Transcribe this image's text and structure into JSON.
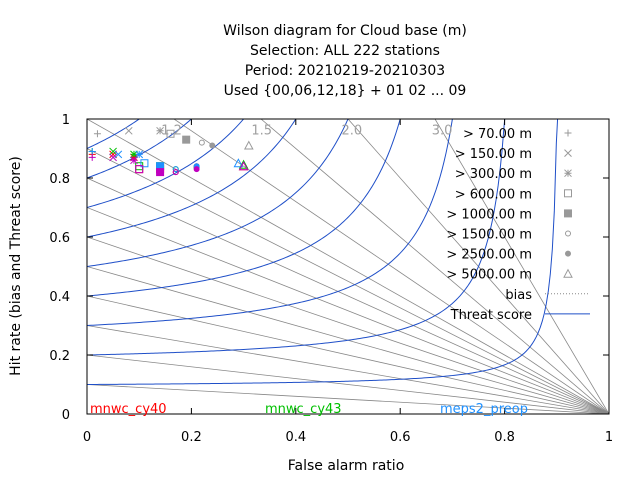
{
  "chart_data": {
    "type": "scatter",
    "title_lines": [
      "Wilson diagram  for Cloud base (m)",
      "Selection: ALL    222 stations",
      "Period: 20210219-20210303",
      "Used {00,06,12,18} + 01 02 ... 09"
    ],
    "xlabel": "False alarm ratio",
    "ylabel": "Hit rate (bias and Threat score)",
    "xlim": [
      0,
      1
    ],
    "ylim": [
      0,
      1
    ],
    "x_ticks": [
      "0",
      "0.2",
      "0.4",
      "0.6",
      "0.8",
      "1"
    ],
    "y_ticks": [
      "0",
      "0.2",
      "0.4",
      "0.6",
      "0.8",
      "1"
    ],
    "bias_values": [
      0.1,
      0.2,
      0.3,
      0.4,
      0.5,
      0.6,
      0.7,
      0.8,
      0.9,
      1.0,
      1.2,
      1.5,
      2.0,
      3.0
    ],
    "bias_labels": [
      "1.2",
      "1.5",
      "2.0",
      "3.0"
    ],
    "threat_scores": [
      0.1,
      0.2,
      0.3,
      0.4,
      0.5,
      0.6,
      0.7,
      0.8,
      0.9
    ],
    "legend": {
      "position": "top-right",
      "entries": [
        {
          "label": "> 70.00 m",
          "symbol": "plus"
        },
        {
          "label": "> 150.00 m",
          "symbol": "cross"
        },
        {
          "label": "> 300.00 m",
          "symbol": "star"
        },
        {
          "label": "> 600.00 m",
          "symbol": "open-square"
        },
        {
          "label": "> 1000.00 m",
          "symbol": "filled-square"
        },
        {
          "label": "> 1500.00 m",
          "symbol": "open-circle"
        },
        {
          "label": "> 2500.00 m",
          "symbol": "filled-circle"
        },
        {
          "label": "> 5000.00 m",
          "symbol": "triangle"
        },
        {
          "label": "bias",
          "symbol": "dotted-line"
        },
        {
          "label": "Threat score",
          "symbol": "solid-line"
        }
      ]
    },
    "series": [
      {
        "name": "mnwc_cy40",
        "color": "#ff0000",
        "points": [
          {
            "x": 0.01,
            "y": 0.88,
            "symbol": "plus"
          },
          {
            "x": 0.05,
            "y": 0.88,
            "symbol": "cross"
          },
          {
            "x": 0.09,
            "y": 0.87,
            "symbol": "star"
          },
          {
            "x": 0.1,
            "y": 0.83,
            "symbol": "open-square"
          },
          {
            "x": 0.14,
            "y": 0.83,
            "symbol": "filled-square"
          },
          {
            "x": 0.17,
            "y": 0.82,
            "symbol": "open-circle"
          },
          {
            "x": 0.21,
            "y": 0.84,
            "symbol": "filled-circle"
          },
          {
            "x": 0.3,
            "y": 0.84,
            "symbol": "triangle"
          }
        ]
      },
      {
        "name": "mnwc_cy43",
        "color": "#00c000",
        "points": [
          {
            "x": 0.01,
            "y": 0.89,
            "symbol": "plus"
          },
          {
            "x": 0.05,
            "y": 0.89,
            "symbol": "cross"
          },
          {
            "x": 0.09,
            "y": 0.88,
            "symbol": "star"
          },
          {
            "x": 0.1,
            "y": 0.84,
            "symbol": "open-square"
          },
          {
            "x": 0.14,
            "y": 0.84,
            "symbol": "filled-square"
          },
          {
            "x": 0.17,
            "y": 0.83,
            "symbol": "open-circle"
          },
          {
            "x": 0.21,
            "y": 0.835,
            "symbol": "filled-circle"
          },
          {
            "x": 0.3,
            "y": 0.845,
            "symbol": "triangle"
          }
        ]
      },
      {
        "name": "meps2_preop",
        "color": "#1e90ff",
        "points": [
          {
            "x": 0.01,
            "y": 0.89,
            "symbol": "plus"
          },
          {
            "x": 0.06,
            "y": 0.88,
            "symbol": "cross"
          },
          {
            "x": 0.1,
            "y": 0.88,
            "symbol": "star"
          },
          {
            "x": 0.11,
            "y": 0.85,
            "symbol": "open-square"
          },
          {
            "x": 0.14,
            "y": 0.84,
            "symbol": "filled-square"
          },
          {
            "x": 0.17,
            "y": 0.83,
            "symbol": "open-circle"
          },
          {
            "x": 0.21,
            "y": 0.84,
            "symbol": "filled-circle"
          },
          {
            "x": 0.29,
            "y": 0.85,
            "symbol": "triangle"
          }
        ]
      },
      {
        "name": "",
        "color": "#c000c0",
        "points": [
          {
            "x": 0.01,
            "y": 0.87,
            "symbol": "plus"
          },
          {
            "x": 0.05,
            "y": 0.87,
            "symbol": "cross"
          },
          {
            "x": 0.09,
            "y": 0.86,
            "symbol": "star"
          },
          {
            "x": 0.1,
            "y": 0.83,
            "symbol": "open-square"
          },
          {
            "x": 0.14,
            "y": 0.82,
            "symbol": "filled-square"
          },
          {
            "x": 0.17,
            "y": 0.82,
            "symbol": "open-circle"
          },
          {
            "x": 0.21,
            "y": 0.83,
            "symbol": "filled-circle"
          },
          {
            "x": 0.3,
            "y": 0.84,
            "symbol": "triangle"
          }
        ]
      },
      {
        "name": "",
        "color": "#999999",
        "points": [
          {
            "x": 0.02,
            "y": 0.95,
            "symbol": "plus"
          },
          {
            "x": 0.08,
            "y": 0.96,
            "symbol": "cross"
          },
          {
            "x": 0.14,
            "y": 0.96,
            "symbol": "star"
          },
          {
            "x": 0.16,
            "y": 0.95,
            "symbol": "open-square"
          },
          {
            "x": 0.19,
            "y": 0.93,
            "symbol": "filled-square"
          },
          {
            "x": 0.22,
            "y": 0.92,
            "symbol": "open-circle"
          },
          {
            "x": 0.24,
            "y": 0.91,
            "symbol": "filled-circle"
          },
          {
            "x": 0.31,
            "y": 0.91,
            "symbol": "triangle"
          }
        ]
      }
    ],
    "colors": {
      "threat_line": "#1f4fc8",
      "bias_line": "#888888",
      "bias_label": "#a0a0a0",
      "legend_symbol": "#999999"
    }
  }
}
